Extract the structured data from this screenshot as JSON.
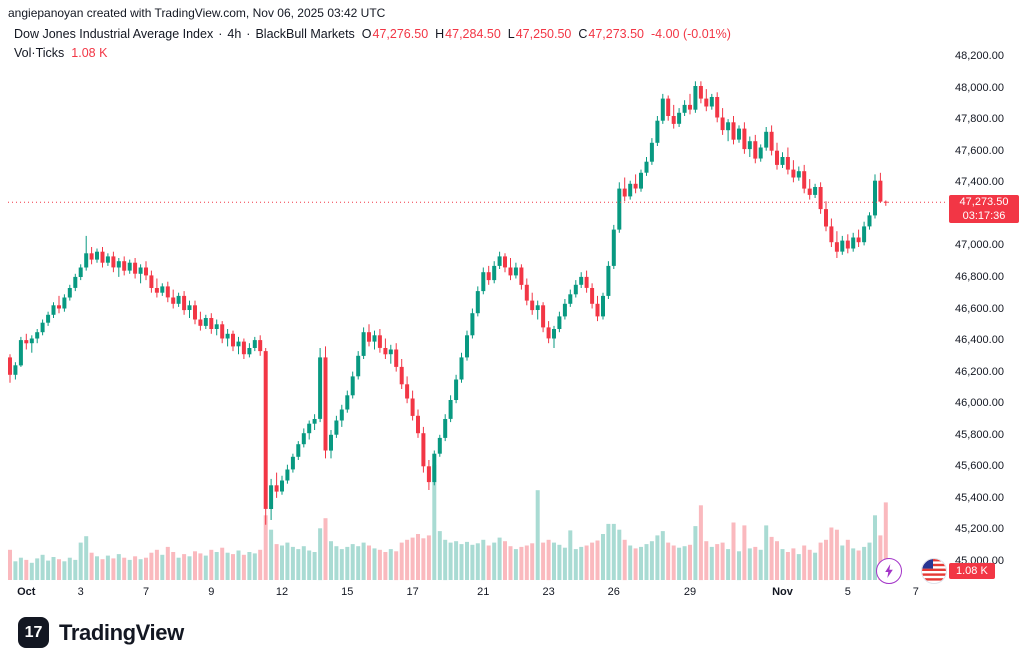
{
  "attribution": "angiepanoyan created with TradingView.com, Nov 06, 2025 03:42 UTC",
  "legend": {
    "title": "Dow Jones Industrial Average Index",
    "interval": "4h",
    "broker": "BlackBull Markets",
    "dot": "·",
    "ohlc": {
      "o_label": "O",
      "o": "47,276.50",
      "h_label": "H",
      "h": "47,284.50",
      "l_label": "L",
      "l": "47,250.50",
      "c_label": "C",
      "c": "47,273.50",
      "change": "-4.00 (-0.01%)"
    },
    "volume_label": "Vol",
    "volume_type": "Ticks",
    "volume_value": "1.08 K"
  },
  "price_axis": {
    "max": 48200,
    "min": 45000,
    "step": 200,
    "labels": [
      "48,200.00",
      "48,000.00",
      "47,800.00",
      "47,600.00",
      "47,400.00",
      "47,200.00",
      "47,000.00",
      "46,800.00",
      "46,600.00",
      "46,400.00",
      "46,200.00",
      "46,000.00",
      "45,800.00",
      "45,600.00",
      "45,400.00",
      "45,200.00",
      "45,000.00"
    ]
  },
  "time_axis": {
    "ticks": [
      {
        "label": "Oct",
        "ci": 3,
        "major": true
      },
      {
        "label": "3",
        "ci": 13,
        "major": false
      },
      {
        "label": "7",
        "ci": 25,
        "major": false
      },
      {
        "label": "9",
        "ci": 37,
        "major": false
      },
      {
        "label": "12",
        "ci": 50,
        "major": false
      },
      {
        "label": "15",
        "ci": 62,
        "major": false
      },
      {
        "label": "17",
        "ci": 74,
        "major": false
      },
      {
        "label": "21",
        "ci": 87,
        "major": false
      },
      {
        "label": "23",
        "ci": 99,
        "major": false
      },
      {
        "label": "26",
        "ci": 111,
        "major": false
      },
      {
        "label": "29",
        "ci": 125,
        "major": false
      },
      {
        "label": "Nov",
        "ci": 142,
        "major": true
      },
      {
        "label": "5",
        "ci": 154,
        "major": false
      },
      {
        "label": "7",
        "ci": 166.5,
        "major": false
      }
    ]
  },
  "price_line": {
    "price": 47273.5,
    "label": "47,273.50",
    "countdown": "03:17:36"
  },
  "volume_badge": "1.08 K",
  "logo": {
    "mark": "17",
    "text": "TradingView"
  },
  "colors": {
    "up": "#089981",
    "down": "#f23645",
    "vol_up": "rgba(8,153,129,0.35)",
    "vol_down": "rgba(242,54,69,0.35)",
    "badge": "#f23645",
    "text": "#131722"
  },
  "chart_data": {
    "type": "candlestick+volume",
    "symbol": "Dow Jones Industrial Average Index",
    "interval": "4h",
    "volume_unit": "Ticks",
    "price_range": [
      45000,
      48200
    ],
    "candle_format": [
      "open",
      "high",
      "low",
      "close",
      "volume"
    ],
    "candles": [
      [
        46290,
        46310,
        46130,
        46180,
        420
      ],
      [
        46180,
        46260,
        46150,
        46240,
        260
      ],
      [
        46240,
        46420,
        46230,
        46400,
        310
      ],
      [
        46400,
        46440,
        46340,
        46380,
        280
      ],
      [
        46380,
        46430,
        46320,
        46410,
        240
      ],
      [
        46410,
        46470,
        46380,
        46450,
        300
      ],
      [
        46450,
        46530,
        46430,
        46510,
        350
      ],
      [
        46510,
        46580,
        46490,
        46560,
        270
      ],
      [
        46560,
        46640,
        46540,
        46620,
        320
      ],
      [
        46620,
        46680,
        46570,
        46600,
        290
      ],
      [
        46600,
        46690,
        46580,
        46670,
        260
      ],
      [
        46670,
        46750,
        46650,
        46730,
        310
      ],
      [
        46730,
        46820,
        46710,
        46800,
        280
      ],
      [
        46800,
        46880,
        46780,
        46860,
        520
      ],
      [
        46860,
        47060,
        46840,
        46950,
        610
      ],
      [
        46950,
        46990,
        46880,
        46910,
        380
      ],
      [
        46910,
        46980,
        46890,
        46960,
        330
      ],
      [
        46960,
        46990,
        46860,
        46890,
        290
      ],
      [
        46890,
        46950,
        46870,
        46930,
        340
      ],
      [
        46930,
        46960,
        46830,
        46860,
        300
      ],
      [
        46860,
        46920,
        46800,
        46900,
        360
      ],
      [
        46900,
        46930,
        46810,
        46840,
        310
      ],
      [
        46840,
        46910,
        46820,
        46890,
        280
      ],
      [
        46890,
        46920,
        46790,
        46820,
        330
      ],
      [
        46820,
        46880,
        46760,
        46860,
        290
      ],
      [
        46860,
        46900,
        46780,
        46810,
        310
      ],
      [
        46810,
        46840,
        46700,
        46730,
        380
      ],
      [
        46730,
        46790,
        46670,
        46700,
        420
      ],
      [
        46700,
        46760,
        46680,
        46740,
        350
      ],
      [
        46740,
        46770,
        46640,
        46670,
        460
      ],
      [
        46670,
        46720,
        46600,
        46630,
        390
      ],
      [
        46630,
        46700,
        46610,
        46680,
        310
      ],
      [
        46680,
        46710,
        46560,
        46590,
        360
      ],
      [
        46590,
        46650,
        46540,
        46620,
        330
      ],
      [
        46620,
        46650,
        46500,
        46530,
        400
      ],
      [
        46530,
        46580,
        46460,
        46490,
        370
      ],
      [
        46490,
        46560,
        46470,
        46540,
        340
      ],
      [
        46540,
        46570,
        46440,
        46470,
        420
      ],
      [
        46470,
        46530,
        46430,
        46500,
        390
      ],
      [
        46500,
        46520,
        46380,
        46410,
        450
      ],
      [
        46410,
        46470,
        46360,
        46440,
        380
      ],
      [
        46440,
        46460,
        46330,
        46360,
        360
      ],
      [
        46360,
        46420,
        46310,
        46390,
        410
      ],
      [
        46390,
        46410,
        46280,
        46310,
        350
      ],
      [
        46310,
        46380,
        46290,
        46350,
        390
      ],
      [
        46350,
        46420,
        46330,
        46400,
        370
      ],
      [
        46400,
        46430,
        46300,
        46330,
        420
      ],
      [
        46330,
        46350,
        45230,
        45330,
        900
      ],
      [
        45330,
        45520,
        45260,
        45480,
        700
      ],
      [
        45480,
        45560,
        45400,
        45440,
        500
      ],
      [
        45440,
        45540,
        45420,
        45510,
        480
      ],
      [
        45510,
        45610,
        45490,
        45580,
        520
      ],
      [
        45580,
        45680,
        45560,
        45660,
        460
      ],
      [
        45660,
        45760,
        45640,
        45740,
        430
      ],
      [
        45740,
        45840,
        45720,
        45810,
        470
      ],
      [
        45810,
        45890,
        45770,
        45870,
        410
      ],
      [
        45870,
        45930,
        45830,
        45900,
        390
      ],
      [
        45900,
        46350,
        45880,
        46290,
        720
      ],
      [
        46290,
        46360,
        45650,
        45700,
        860
      ],
      [
        45700,
        45830,
        45650,
        45800,
        540
      ],
      [
        45800,
        45920,
        45780,
        45890,
        470
      ],
      [
        45890,
        45990,
        45850,
        45960,
        430
      ],
      [
        45960,
        46080,
        45940,
        46050,
        460
      ],
      [
        46050,
        46200,
        46030,
        46170,
        500
      ],
      [
        46170,
        46330,
        46150,
        46300,
        470
      ],
      [
        46300,
        46480,
        46280,
        46450,
        520
      ],
      [
        46450,
        46500,
        46360,
        46390,
        480
      ],
      [
        46390,
        46460,
        46340,
        46430,
        440
      ],
      [
        46430,
        46470,
        46320,
        46350,
        420
      ],
      [
        46350,
        46410,
        46280,
        46310,
        390
      ],
      [
        46310,
        46370,
        46250,
        46340,
        430
      ],
      [
        46340,
        46380,
        46200,
        46230,
        400
      ],
      [
        46230,
        46280,
        46090,
        46120,
        520
      ],
      [
        46120,
        46170,
        46000,
        46030,
        560
      ],
      [
        46030,
        46080,
        45890,
        45920,
        590
      ],
      [
        45920,
        45960,
        45780,
        45810,
        640
      ],
      [
        45810,
        45850,
        45560,
        45600,
        580
      ],
      [
        45600,
        45640,
        45450,
        45500,
        620
      ],
      [
        45500,
        45700,
        45480,
        45680,
        1600
      ],
      [
        45680,
        45800,
        45660,
        45780,
        680
      ],
      [
        45780,
        45930,
        45760,
        45900,
        560
      ],
      [
        45900,
        46050,
        45880,
        46020,
        520
      ],
      [
        46020,
        46180,
        46000,
        46150,
        540
      ],
      [
        46150,
        46320,
        46130,
        46290,
        500
      ],
      [
        46290,
        46460,
        46270,
        46430,
        530
      ],
      [
        46430,
        46600,
        46410,
        46570,
        490
      ],
      [
        46570,
        46740,
        46550,
        46710,
        510
      ],
      [
        46710,
        46860,
        46690,
        46830,
        560
      ],
      [
        46830,
        46870,
        46750,
        46780,
        480
      ],
      [
        46780,
        46900,
        46760,
        46870,
        520
      ],
      [
        46870,
        46960,
        46850,
        46930,
        590
      ],
      [
        46930,
        46950,
        46830,
        46860,
        540
      ],
      [
        46860,
        46920,
        46780,
        46810,
        470
      ],
      [
        46810,
        46890,
        46790,
        46860,
        430
      ],
      [
        46860,
        46880,
        46720,
        46750,
        460
      ],
      [
        46750,
        46790,
        46620,
        46650,
        480
      ],
      [
        46650,
        46700,
        46560,
        46590,
        510
      ],
      [
        46590,
        46650,
        46530,
        46620,
        1250
      ],
      [
        46620,
        46640,
        46450,
        46480,
        520
      ],
      [
        46480,
        46520,
        46380,
        46410,
        560
      ],
      [
        46410,
        46490,
        46350,
        46470,
        520
      ],
      [
        46470,
        46580,
        46450,
        46550,
        490
      ],
      [
        46550,
        46660,
        46530,
        46630,
        450
      ],
      [
        46630,
        46720,
        46610,
        46690,
        690
      ],
      [
        46690,
        46780,
        46670,
        46750,
        430
      ],
      [
        46750,
        46830,
        46730,
        46800,
        460
      ],
      [
        46800,
        46840,
        46700,
        46730,
        480
      ],
      [
        46730,
        46760,
        46600,
        46630,
        520
      ],
      [
        46630,
        46680,
        46520,
        46550,
        550
      ],
      [
        46550,
        46700,
        46530,
        46680,
        640
      ],
      [
        46680,
        46900,
        46660,
        46870,
        780
      ],
      [
        46870,
        47130,
        46850,
        47100,
        780
      ],
      [
        47100,
        47400,
        47080,
        47360,
        700
      ],
      [
        47360,
        47430,
        47280,
        47310,
        560
      ],
      [
        47310,
        47410,
        47290,
        47390,
        480
      ],
      [
        47390,
        47450,
        47330,
        47360,
        440
      ],
      [
        47360,
        47480,
        47340,
        47460,
        460
      ],
      [
        47460,
        47560,
        47440,
        47530,
        500
      ],
      [
        47530,
        47680,
        47510,
        47650,
        540
      ],
      [
        47650,
        47820,
        47630,
        47790,
        620
      ],
      [
        47790,
        47960,
        47770,
        47930,
        680
      ],
      [
        47930,
        47950,
        47790,
        47820,
        520
      ],
      [
        47820,
        47890,
        47740,
        47770,
        480
      ],
      [
        47770,
        47870,
        47750,
        47840,
        450
      ],
      [
        47840,
        47920,
        47820,
        47890,
        470
      ],
      [
        47890,
        47960,
        47830,
        47860,
        490
      ],
      [
        47860,
        48040,
        47840,
        48010,
        750
      ],
      [
        48010,
        48040,
        47900,
        47930,
        1040
      ],
      [
        47930,
        47990,
        47850,
        47880,
        540
      ],
      [
        47880,
        47960,
        47860,
        47940,
        460
      ],
      [
        47940,
        47970,
        47780,
        47810,
        500
      ],
      [
        47810,
        47870,
        47700,
        47730,
        520
      ],
      [
        47730,
        47800,
        47660,
        47780,
        430
      ],
      [
        47780,
        47820,
        47640,
        47670,
        800
      ],
      [
        47670,
        47760,
        47650,
        47740,
        400
      ],
      [
        47740,
        47780,
        47580,
        47610,
        760
      ],
      [
        47610,
        47690,
        47560,
        47660,
        440
      ],
      [
        47660,
        47700,
        47520,
        47550,
        460
      ],
      [
        47550,
        47640,
        47530,
        47620,
        420
      ],
      [
        47620,
        47750,
        47600,
        47720,
        760
      ],
      [
        47720,
        47760,
        47570,
        47600,
        600
      ],
      [
        47600,
        47650,
        47480,
        47510,
        540
      ],
      [
        47510,
        47590,
        47490,
        47560,
        430
      ],
      [
        47560,
        47620,
        47450,
        47480,
        390
      ],
      [
        47480,
        47540,
        47400,
        47430,
        440
      ],
      [
        47430,
        47500,
        47410,
        47470,
        360
      ],
      [
        47470,
        47510,
        47330,
        47360,
        480
      ],
      [
        47360,
        47420,
        47290,
        47320,
        420
      ],
      [
        47320,
        47390,
        47300,
        47370,
        380
      ],
      [
        47370,
        47400,
        47200,
        47230,
        520
      ],
      [
        47230,
        47280,
        47090,
        47120,
        560
      ],
      [
        47120,
        47170,
        46990,
        47020,
        730
      ],
      [
        47020,
        47090,
        46920,
        46960,
        700
      ],
      [
        46960,
        47060,
        46940,
        47030,
        480
      ],
      [
        47030,
        47070,
        46950,
        46980,
        560
      ],
      [
        46980,
        47080,
        46960,
        47050,
        440
      ],
      [
        47050,
        47100,
        46990,
        47020,
        410
      ],
      [
        47020,
        47150,
        47000,
        47120,
        460
      ],
      [
        47120,
        47210,
        47100,
        47190,
        520
      ],
      [
        47190,
        47450,
        47170,
        47410,
        900
      ],
      [
        47410,
        47460,
        47270,
        47277.5,
        620
      ],
      [
        47276.5,
        47284.5,
        47250.5,
        47273.5,
        1080
      ]
    ]
  }
}
